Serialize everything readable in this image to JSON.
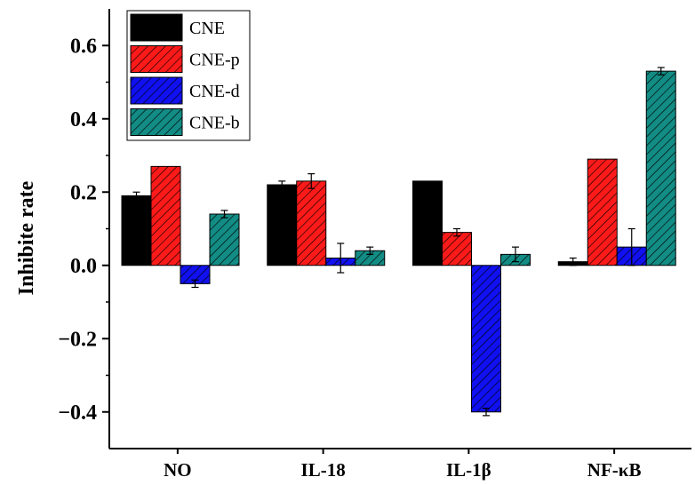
{
  "chart_data": {
    "type": "bar",
    "title": "",
    "xlabel": "",
    "ylabel": "Inhibite rate",
    "ylim": [
      -0.5,
      0.7
    ],
    "yticks": [
      "0.6",
      "0.4",
      "0.2",
      "0.0",
      "−0.2",
      "−0.4"
    ],
    "categories": [
      "NO",
      "IL-18",
      "IL-1β",
      "NF-κB"
    ],
    "series": [
      {
        "name": "CNE",
        "color": "#000000",
        "pattern": "solid",
        "values": [
          0.19,
          0.22,
          0.23,
          0.01
        ],
        "errors": [
          0.01,
          0.01,
          0.0,
          0.01
        ]
      },
      {
        "name": "CNE-p",
        "color": "#ff1a1a",
        "pattern": "hatch",
        "values": [
          0.27,
          0.23,
          0.09,
          0.29
        ],
        "errors": [
          0.0,
          0.02,
          0.01,
          0.0
        ]
      },
      {
        "name": "CNE-d",
        "color": "#1010f0",
        "pattern": "hatch",
        "values": [
          -0.05,
          0.02,
          -0.4,
          0.05
        ],
        "errors": [
          0.01,
          0.04,
          0.01,
          0.05
        ]
      },
      {
        "name": "CNE-b",
        "color": "#128c84",
        "pattern": "hatch",
        "values": [
          0.14,
          0.04,
          0.03,
          0.53
        ],
        "errors": [
          0.01,
          0.01,
          0.02,
          0.01
        ]
      }
    ],
    "legend_position": "top-left",
    "grid": false
  }
}
